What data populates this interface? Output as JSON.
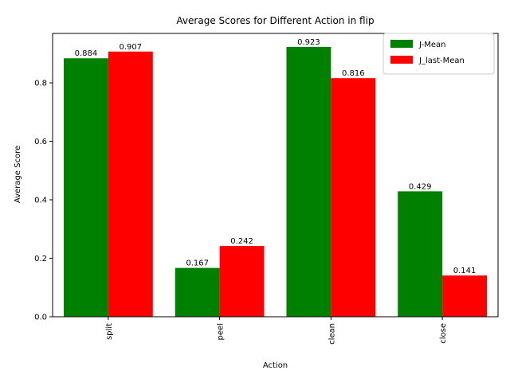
{
  "chart_data": {
    "type": "bar",
    "title": "Average Scores for Different Action in flip",
    "xlabel": "Action",
    "ylabel": "Average Score",
    "categories": [
      "split",
      "peel",
      "clean",
      "close"
    ],
    "series": [
      {
        "name": "J-Mean",
        "values": [
          0.884,
          0.167,
          0.923,
          0.429
        ],
        "color": "#008000"
      },
      {
        "name": "J_last-Mean",
        "values": [
          0.907,
          0.242,
          0.816,
          0.141
        ],
        "color": "#ff0000"
      }
    ],
    "value_labels": [
      [
        "0.884",
        "0.167",
        "0.923",
        "0.429"
      ],
      [
        "0.907",
        "0.242",
        "0.816",
        "0.141"
      ]
    ],
    "ylim": [
      0,
      0.969
    ],
    "yticks": [
      0.0,
      0.2,
      0.4,
      0.6,
      0.8
    ],
    "ytick_labels": [
      "0.0",
      "0.2",
      "0.4",
      "0.6",
      "0.8"
    ],
    "grid": false,
    "legend_position": "top-right",
    "x_tick_rotation": "vertical"
  }
}
